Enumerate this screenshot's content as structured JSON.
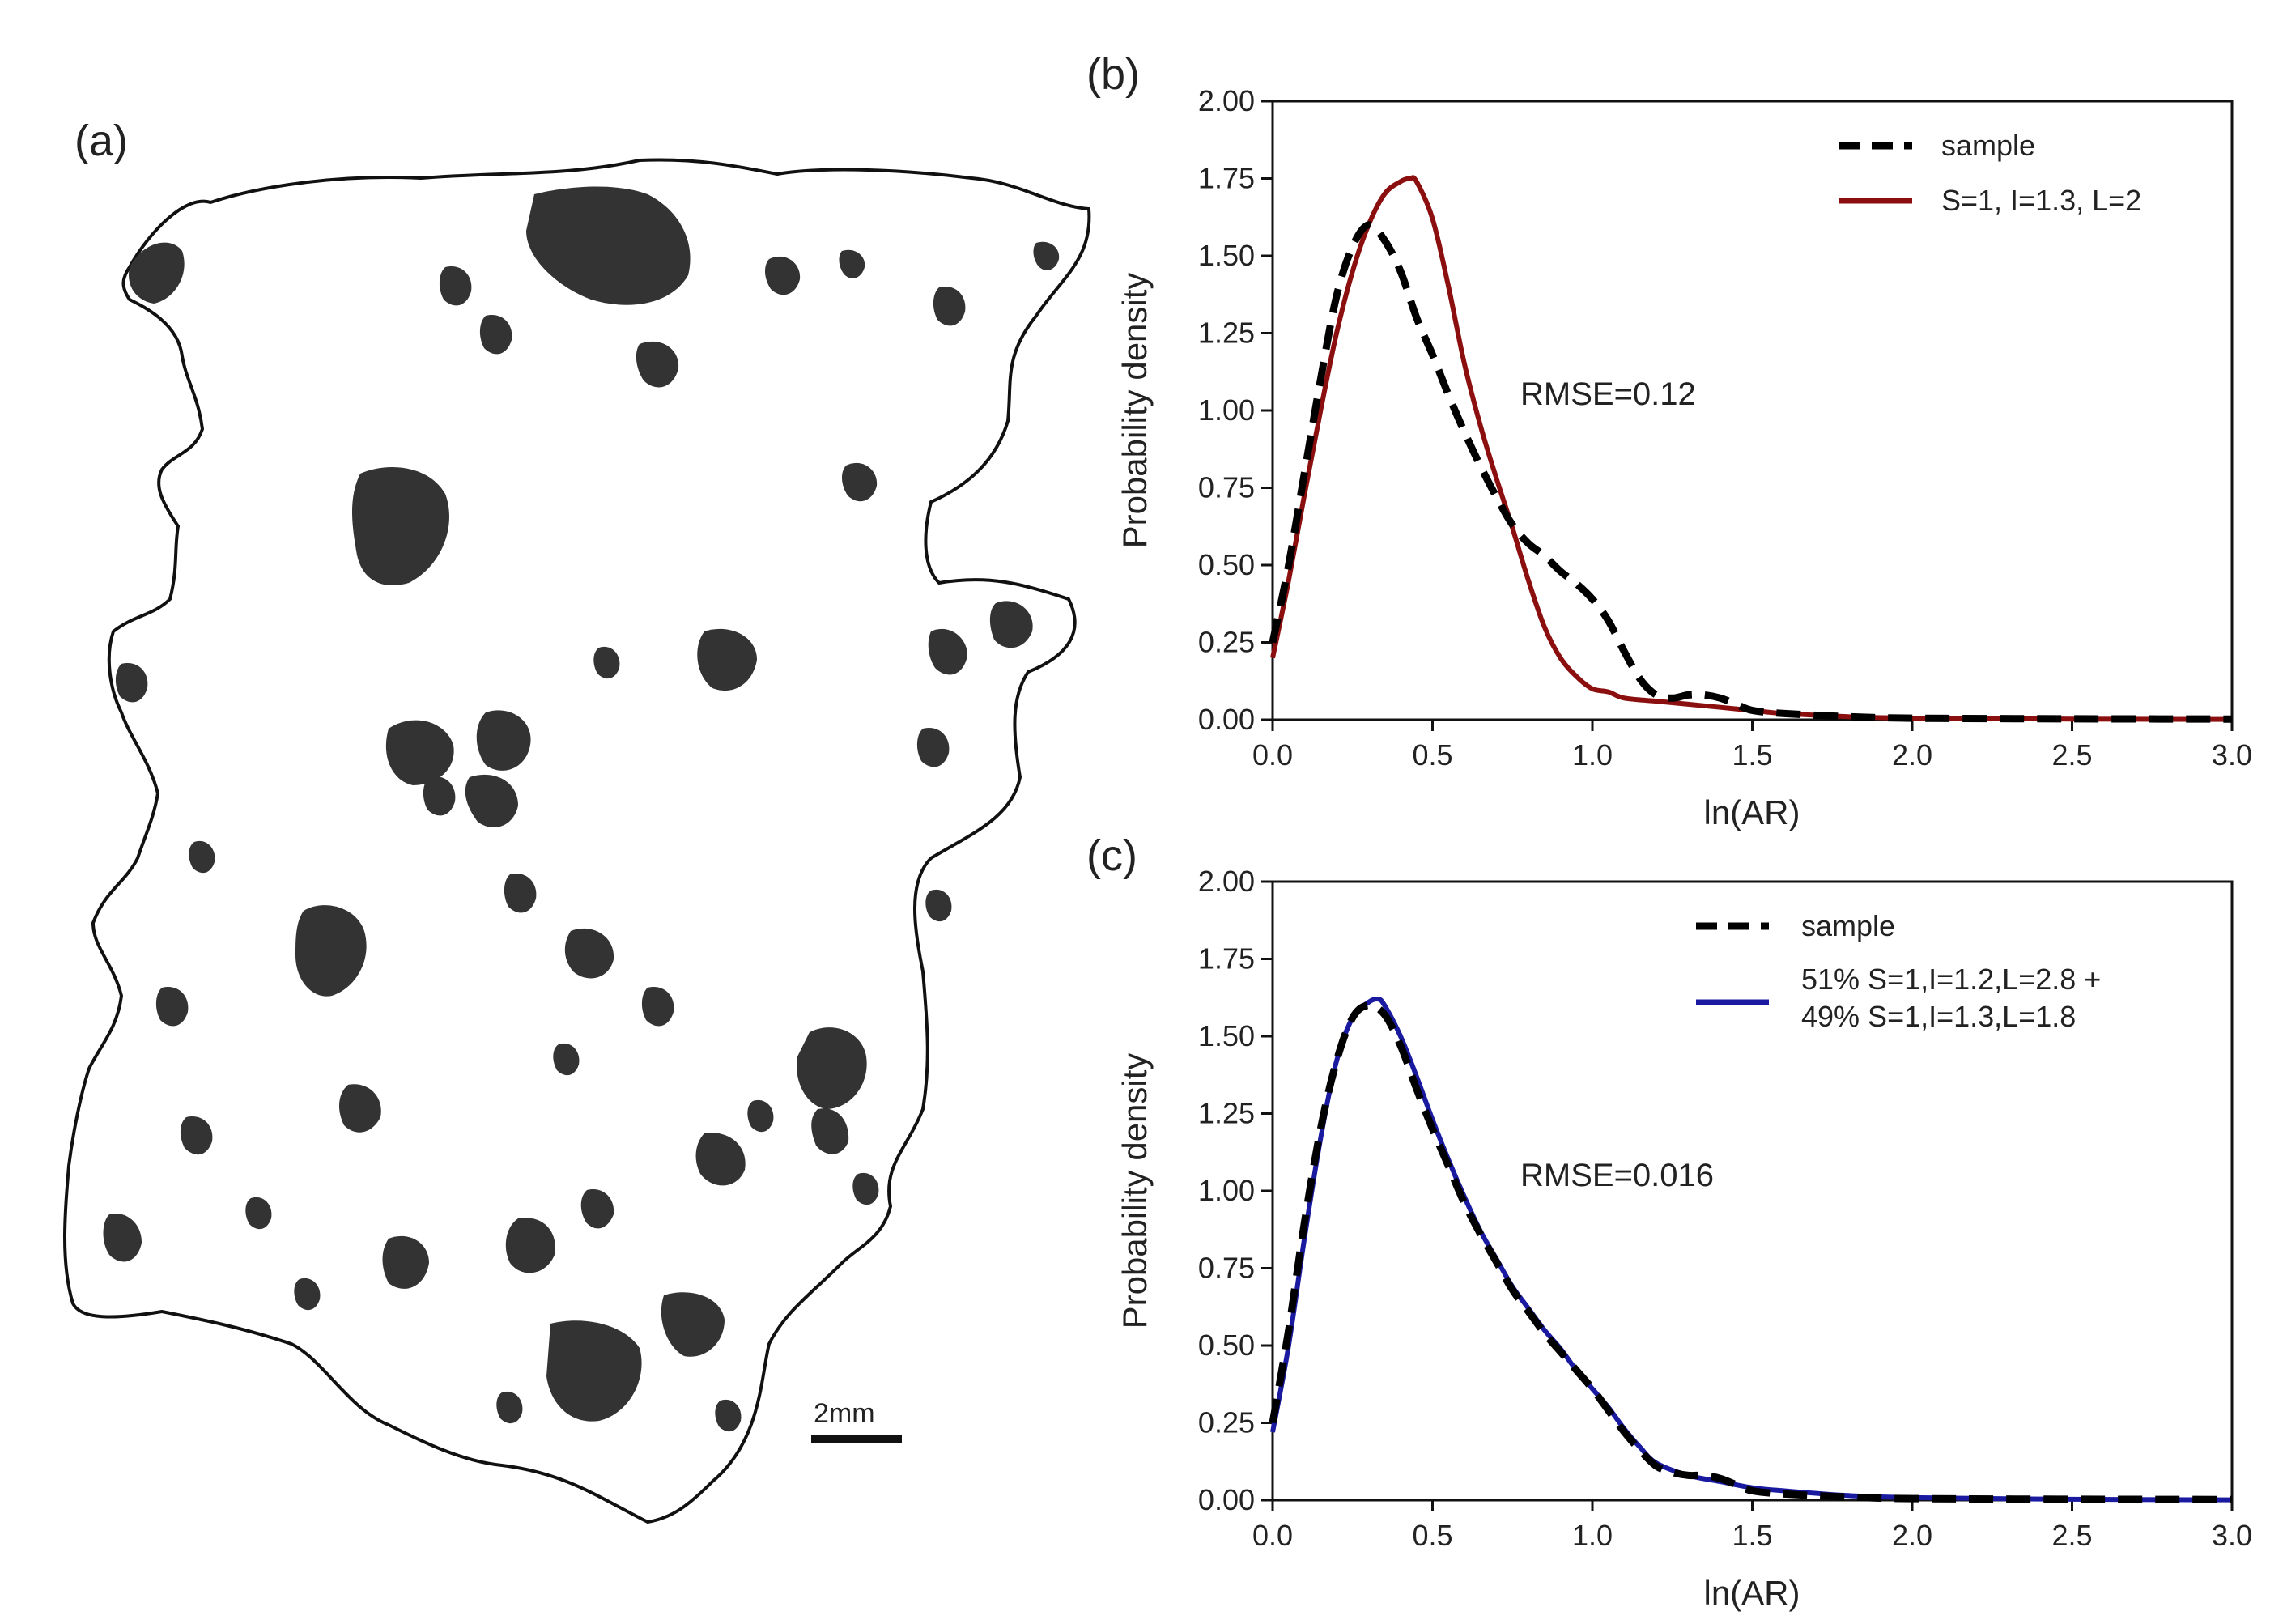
{
  "panels": {
    "a": {
      "label": "(a)",
      "scale_bar": "2mm"
    }
  },
  "chart_data": [
    {
      "panel": "(b)",
      "type": "line",
      "xlabel": "ln(AR)",
      "ylabel": "Probability density",
      "xlim": [
        0,
        3
      ],
      "ylim": [
        0,
        2
      ],
      "xticks": [
        "0.0",
        "0.5",
        "1.0",
        "1.5",
        "2.0",
        "2.5",
        "3.0"
      ],
      "yticks": [
        "0.00",
        "0.25",
        "0.50",
        "0.75",
        "1.00",
        "1.25",
        "1.50",
        "1.75",
        "2.00"
      ],
      "annotation": "RMSE=0.12",
      "legend_position": "top-right",
      "series": [
        {
          "name": "sample",
          "style": "dashed",
          "color": "#000000",
          "x": [
            0,
            0.05,
            0.1,
            0.15,
            0.2,
            0.25,
            0.3,
            0.35,
            0.4,
            0.45,
            0.5,
            0.55,
            0.6,
            0.65,
            0.7,
            0.75,
            0.8,
            0.85,
            0.9,
            0.95,
            1.0,
            1.05,
            1.1,
            1.15,
            1.2,
            1.25,
            1.3,
            1.35,
            1.4,
            1.45,
            1.5,
            1.6,
            1.8,
            2.0,
            2.5,
            3.0
          ],
          "values": [
            0.25,
            0.5,
            0.8,
            1.1,
            1.37,
            1.53,
            1.6,
            1.55,
            1.45,
            1.3,
            1.18,
            1.05,
            0.93,
            0.82,
            0.72,
            0.63,
            0.57,
            0.53,
            0.48,
            0.44,
            0.39,
            0.32,
            0.22,
            0.13,
            0.08,
            0.07,
            0.08,
            0.08,
            0.07,
            0.05,
            0.03,
            0.02,
            0.01,
            0.005,
            0.003,
            0.002
          ]
        },
        {
          "name": "S=1, I=1.3, L=2",
          "style": "solid",
          "color": "#8b0f0f",
          "x": [
            0,
            0.05,
            0.1,
            0.15,
            0.2,
            0.25,
            0.3,
            0.35,
            0.4,
            0.43,
            0.45,
            0.5,
            0.55,
            0.6,
            0.65,
            0.7,
            0.75,
            0.8,
            0.85,
            0.9,
            0.95,
            1.0,
            1.05,
            1.1,
            1.2,
            1.3,
            1.4,
            1.5,
            1.6,
            1.8,
            2.0,
            2.5,
            3.0
          ],
          "values": [
            0.2,
            0.45,
            0.73,
            1.0,
            1.25,
            1.45,
            1.6,
            1.7,
            1.74,
            1.75,
            1.74,
            1.62,
            1.4,
            1.15,
            0.95,
            0.78,
            0.62,
            0.45,
            0.3,
            0.2,
            0.14,
            0.1,
            0.09,
            0.07,
            0.06,
            0.05,
            0.04,
            0.03,
            0.02,
            0.01,
            0.005,
            0.002,
            0.001
          ]
        }
      ]
    },
    {
      "panel": "(c)",
      "type": "line",
      "xlabel": "ln(AR)",
      "ylabel": "Probability density",
      "xlim": [
        0,
        3
      ],
      "ylim": [
        0,
        2
      ],
      "xticks": [
        "0.0",
        "0.5",
        "1.0",
        "1.5",
        "2.0",
        "2.5",
        "3.0"
      ],
      "yticks": [
        "0.00",
        "0.25",
        "0.50",
        "0.75",
        "1.00",
        "1.25",
        "1.50",
        "1.75",
        "2.00"
      ],
      "annotation": "RMSE=0.016",
      "legend_position": "top-right",
      "series": [
        {
          "name": "sample",
          "style": "dashed",
          "color": "#000000",
          "x": [
            0,
            0.05,
            0.1,
            0.15,
            0.2,
            0.25,
            0.3,
            0.35,
            0.4,
            0.45,
            0.5,
            0.55,
            0.6,
            0.65,
            0.7,
            0.75,
            0.8,
            0.85,
            0.9,
            0.95,
            1.0,
            1.05,
            1.1,
            1.15,
            1.2,
            1.25,
            1.3,
            1.35,
            1.4,
            1.45,
            1.5,
            1.6,
            1.8,
            2.0,
            2.5,
            3.0
          ],
          "values": [
            0.25,
            0.55,
            0.9,
            1.2,
            1.42,
            1.56,
            1.6,
            1.57,
            1.47,
            1.33,
            1.2,
            1.08,
            0.96,
            0.86,
            0.77,
            0.68,
            0.61,
            0.54,
            0.48,
            0.42,
            0.36,
            0.29,
            0.22,
            0.16,
            0.11,
            0.09,
            0.08,
            0.08,
            0.07,
            0.05,
            0.03,
            0.02,
            0.01,
            0.005,
            0.003,
            0.002
          ]
        },
        {
          "name": "51% S=1,I=1.2,L=2.8 +\n49% S=1,I=1.3,L=1.8",
          "legend_lines": [
            "51% S=1,I=1.2,L=2.8 +",
            "49% S=1,I=1.3,L=1.8"
          ],
          "style": "solid",
          "color": "#1a1aa0",
          "x": [
            0,
            0.05,
            0.1,
            0.15,
            0.2,
            0.25,
            0.3,
            0.33,
            0.35,
            0.4,
            0.45,
            0.5,
            0.55,
            0.6,
            0.65,
            0.7,
            0.75,
            0.8,
            0.85,
            0.9,
            0.95,
            1.0,
            1.05,
            1.1,
            1.15,
            1.2,
            1.3,
            1.4,
            1.5,
            1.6,
            1.8,
            2.0,
            2.5,
            3.0
          ],
          "values": [
            0.22,
            0.5,
            0.85,
            1.17,
            1.42,
            1.56,
            1.61,
            1.62,
            1.6,
            1.5,
            1.37,
            1.23,
            1.1,
            0.98,
            0.87,
            0.78,
            0.69,
            0.62,
            0.55,
            0.49,
            0.42,
            0.36,
            0.3,
            0.23,
            0.17,
            0.12,
            0.08,
            0.06,
            0.04,
            0.03,
            0.015,
            0.008,
            0.003,
            0.001
          ]
        }
      ]
    }
  ]
}
